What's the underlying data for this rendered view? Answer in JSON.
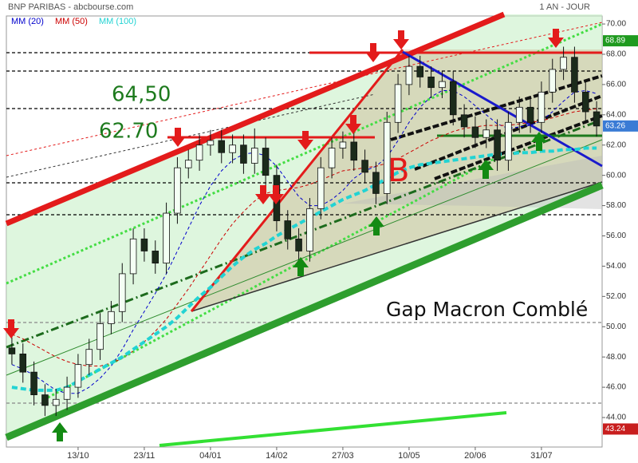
{
  "chart_data": {
    "type": "candlestick",
    "title": "BNP PARIBAS - abcbourse.com",
    "subtitle": "1 AN - JOUR",
    "categories": [
      null,
      null,
      null,
      null,
      null,
      null,
      "13/10",
      null,
      null,
      null,
      null,
      null,
      "23/11",
      null,
      null,
      null,
      null,
      null,
      "04/01",
      null,
      null,
      null,
      null,
      null,
      "14/02",
      null,
      null,
      null,
      null,
      null,
      "27/03",
      null,
      null,
      null,
      null,
      null,
      "10/05",
      null,
      null,
      null,
      null,
      null,
      "20/06",
      null,
      null,
      null,
      null,
      null,
      "31/07",
      null,
      null,
      null,
      null,
      null
    ],
    "open": [
      48.6,
      48.2,
      47.0,
      45.5,
      44.8,
      45.2,
      46.0,
      47.5,
      48.5,
      50.2,
      51.0,
      53.5,
      55.8,
      55.0,
      54.2,
      57.5,
      60.5,
      61.0,
      62.0,
      62.3,
      61.5,
      62.0,
      60.8,
      61.8,
      60.0,
      57.0,
      55.8,
      55.0,
      57.8,
      60.5,
      61.8,
      62.2,
      61.0,
      60.2,
      58.8,
      63.5,
      66.0,
      67.2,
      66.5,
      65.8,
      66.2,
      64.0,
      63.2,
      62.5,
      63.0,
      61.0,
      63.5,
      64.5,
      63.5,
      65.5,
      67.0,
      67.8,
      65.5,
      64.2
    ],
    "high": [
      49.3,
      48.9,
      47.7,
      46.2,
      45.9,
      46.7,
      48.2,
      49.2,
      50.9,
      51.7,
      54.2,
      56.5,
      56.5,
      55.7,
      58.2,
      61.2,
      61.7,
      62.7,
      63.0,
      63.0,
      62.7,
      62.7,
      63.1,
      62.5,
      60.7,
      57.7,
      56.5,
      58.5,
      61.2,
      62.5,
      62.9,
      62.9,
      61.7,
      60.9,
      64.2,
      66.7,
      67.9,
      67.9,
      67.2,
      66.9,
      66.9,
      64.7,
      63.9,
      63.7,
      63.7,
      64.2,
      65.2,
      65.2,
      66.2,
      67.7,
      68.5,
      68.5,
      66.2,
      64.9
    ],
    "low": [
      47.5,
      46.3,
      44.8,
      44.1,
      44.1,
      44.5,
      45.3,
      46.8,
      47.8,
      49.5,
      50.3,
      52.8,
      54.3,
      53.5,
      53.5,
      56.8,
      59.8,
      60.3,
      61.3,
      60.8,
      60.8,
      60.1,
      60.1,
      59.3,
      56.3,
      55.1,
      54.3,
      54.3,
      57.1,
      59.8,
      61.1,
      60.3,
      59.5,
      58.1,
      58.1,
      62.8,
      65.3,
      65.8,
      65.1,
      65.1,
      63.3,
      62.5,
      61.8,
      61.8,
      60.3,
      60.3,
      62.8,
      62.8,
      62.8,
      64.8,
      66.3,
      64.8,
      63.5,
      62.56
    ],
    "close": [
      48.2,
      47.0,
      45.5,
      44.8,
      45.2,
      46.0,
      47.5,
      48.5,
      50.2,
      51.0,
      53.5,
      55.8,
      55.0,
      54.2,
      57.5,
      60.5,
      61.0,
      62.0,
      62.3,
      61.5,
      62.0,
      60.8,
      61.8,
      60.0,
      57.0,
      55.8,
      55.0,
      57.8,
      60.5,
      61.8,
      62.2,
      61.0,
      60.2,
      58.8,
      63.5,
      66.0,
      67.2,
      66.5,
      65.8,
      66.2,
      64.0,
      63.2,
      62.5,
      63.0,
      61.0,
      63.5,
      64.5,
      63.5,
      65.5,
      67.0,
      67.8,
      65.5,
      64.2,
      63.26
    ],
    "series": [
      {
        "name": "MM (20)",
        "color": "#0000cc",
        "values": [
          47.5,
          47.2,
          46.8,
          46.3,
          45.8,
          45.6,
          45.6,
          46.0,
          46.6,
          47.4,
          48.5,
          49.8,
          51.0,
          52.2,
          53.5,
          55.0,
          56.5,
          58.0,
          59.3,
          60.3,
          61.0,
          61.4,
          61.5,
          61.3,
          60.6,
          59.6,
          58.6,
          58.0,
          58.0,
          58.4,
          59.0,
          59.8,
          60.3,
          60.6,
          61.2,
          62.3,
          63.5,
          64.5,
          65.2,
          65.6,
          65.6,
          65.2,
          64.6,
          64.0,
          63.4,
          63.1,
          63.2,
          63.3,
          63.6,
          64.2,
          64.9,
          65.5,
          65.6,
          65.4
        ]
      },
      {
        "name": "MM (50)",
        "color": "#cc0000",
        "values": [
          49.5,
          49.2,
          48.8,
          48.4,
          48.0,
          47.7,
          47.5,
          47.4,
          47.4,
          47.6,
          47.9,
          48.4,
          49.0,
          49.7,
          50.5,
          51.5,
          52.5,
          53.6,
          54.7,
          55.8,
          56.8,
          57.6,
          58.3,
          58.8,
          59.0,
          59.1,
          59.2,
          59.4,
          59.7,
          60.0,
          60.3,
          60.4,
          60.5,
          60.6,
          60.8,
          61.1,
          61.5,
          61.9,
          62.3,
          62.6,
          62.9,
          63.1,
          63.2,
          63.3,
          63.3,
          63.3,
          63.4,
          63.5,
          63.6,
          63.8,
          64.0,
          64.2,
          64.3,
          64.4
        ]
      },
      {
        "name": "MM (100)",
        "color": "#22d3d3",
        "values": [
          46.0,
          45.9,
          45.8,
          45.8,
          45.8,
          46.0,
          46.4,
          46.8,
          47.2,
          47.6,
          48.0,
          48.5,
          49.0,
          49.5,
          50.0,
          50.6,
          51.3,
          52.0,
          52.6,
          53.3,
          54.0,
          54.6,
          55.1,
          55.5,
          56.0,
          56.4,
          56.8,
          57.2,
          57.6,
          58.0,
          58.4,
          58.7,
          59.0,
          59.4,
          59.8,
          60.2,
          60.5,
          60.7,
          60.8,
          60.9,
          61.0,
          61.1,
          61.2,
          61.3,
          61.4,
          61.4,
          61.5,
          61.5,
          61.6,
          61.6,
          61.7,
          61.7,
          61.8,
          61.8
        ]
      }
    ],
    "annotations": [
      "64,50",
      "62.70",
      "B",
      "Gap Macron Comblé"
    ],
    "price_labels": [
      {
        "value": 68.89,
        "color": "#1f9a1f"
      },
      {
        "value": 63.26,
        "color": "#3a7bd5"
      },
      {
        "value": 43.24,
        "color": "#c81e1e"
      }
    ],
    "ylim": [
      42.05,
      70.53
    ],
    "yticks": [
      {
        "value": 44,
        "label": "44.00"
      },
      {
        "value": 46,
        "label": "46.00"
      },
      {
        "value": 48,
        "label": "48.00"
      },
      {
        "value": 50,
        "label": "50.00"
      },
      {
        "value": 52,
        "label": "52.00"
      },
      {
        "value": 54,
        "label": "54.00"
      },
      {
        "value": 56,
        "label": "56.00"
      },
      {
        "value": 58,
        "label": "58.00"
      },
      {
        "value": 60,
        "label": "60.00"
      },
      {
        "value": 62,
        "label": "62.00"
      },
      {
        "value": 64,
        "label": "64.00"
      },
      {
        "value": 66,
        "label": "66.00"
      },
      {
        "value": 68,
        "label": "68.00"
      },
      {
        "value": 70,
        "label": "70.00"
      }
    ],
    "grid": false
  }
}
